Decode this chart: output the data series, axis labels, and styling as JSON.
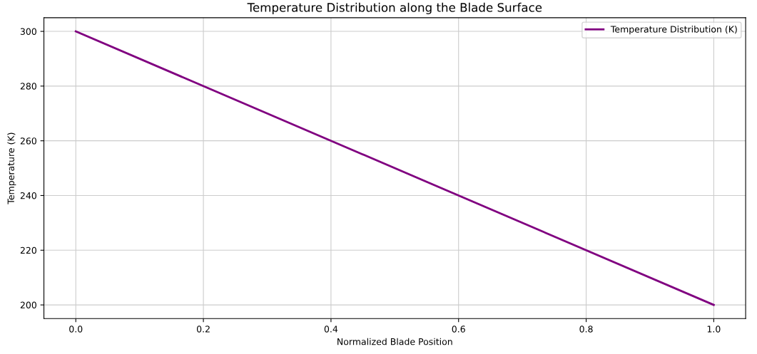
{
  "chart_data": {
    "type": "line",
    "title": "Temperature Distribution along the Blade Surface",
    "xlabel": "Normalized Blade Position",
    "ylabel": "Temperature (K)",
    "series": [
      {
        "name": "Temperature Distribution (K)",
        "color": "#800080",
        "x": [
          0.0,
          1.0
        ],
        "values": [
          300,
          200
        ]
      }
    ],
    "xlim": [
      -0.05,
      1.05
    ],
    "ylim": [
      195,
      305
    ],
    "xticks": [
      {
        "value": 0,
        "label": "0.0"
      },
      0.2,
      0.4,
      0.6,
      0.8,
      {
        "value": 1,
        "label": "1.0"
      }
    ],
    "yticks": [
      200,
      220,
      240,
      260,
      280,
      300
    ],
    "grid": true,
    "legend": "top right",
    "marker": "none",
    "line_style": "solid"
  }
}
